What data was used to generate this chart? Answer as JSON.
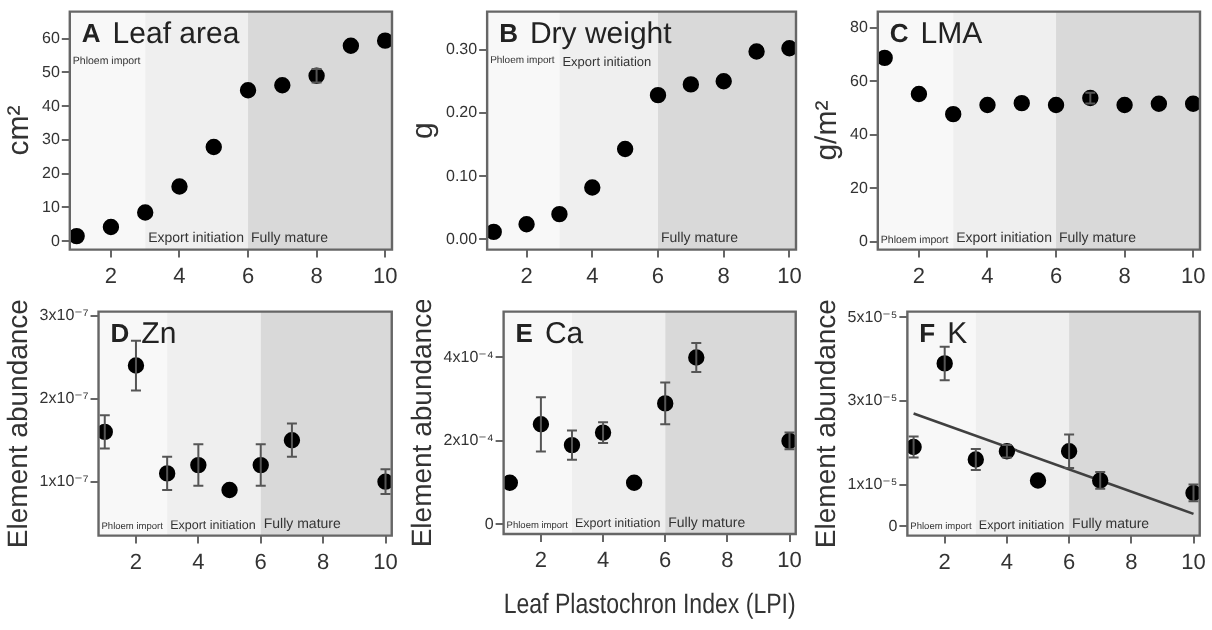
{
  "chart_data": [
    {
      "type": "scatter",
      "title": "Leaf area",
      "annotations": [
        "A"
      ],
      "ylabel": "cm²",
      "x": [
        1,
        2,
        3,
        4,
        5,
        6,
        7,
        8,
        9,
        10
      ],
      "values": [
        1.5,
        4.2,
        8.5,
        16.2,
        27.9,
        44.7,
        46.2,
        49,
        57.9,
        59.4
      ],
      "errors": [
        null,
        null,
        null,
        null,
        null,
        null,
        null,
        2,
        null,
        null
      ],
      "color": "#000000",
      "marker": "circle",
      "xlim": [
        0.8,
        10.2
      ],
      "xticks": [
        2,
        4,
        6,
        8,
        10
      ],
      "ylim": [
        -2.5,
        68
      ],
      "yticks": [
        0,
        10,
        20,
        30,
        40,
        50,
        60
      ],
      "grid": false,
      "legend": false,
      "bands": [
        {
          "axis": "x",
          "from": 0.8,
          "to": 3,
          "label": "Phloem import",
          "color": "#f8f8f8"
        },
        {
          "axis": "x",
          "from": 3,
          "to": 6,
          "label": "Export initiation",
          "color": "#efefef"
        },
        {
          "axis": "x",
          "from": 6,
          "to": 10.2,
          "label": "Fully mature",
          "color": "#d9d9d9"
        }
      ]
    },
    {
      "type": "scatter",
      "title": "Dry weight",
      "annotations": [
        "B"
      ],
      "ylabel": "g",
      "x": [
        1,
        2,
        3,
        4,
        5,
        6,
        7,
        8,
        9,
        10
      ],
      "values": [
        0.012,
        0.024,
        0.04,
        0.082,
        0.143,
        0.228,
        0.245,
        0.25,
        0.297,
        0.302
      ],
      "color": "#000000",
      "marker": "circle",
      "xlim": [
        0.8,
        10.2
      ],
      "xticks": [
        2,
        4,
        6,
        8,
        10
      ],
      "ylim": [
        -0.016,
        0.36
      ],
      "yticks": [
        {
          "value": 0,
          "label": "0.00"
        },
        {
          "value": 0.1,
          "label": "0.10"
        },
        {
          "value": 0.2,
          "label": "0.20"
        },
        {
          "value": 0.3,
          "label": "0.30"
        }
      ],
      "grid": false,
      "legend": false,
      "bands": [
        {
          "axis": "x",
          "from": 0.8,
          "to": 3,
          "label": "Phloem import",
          "color": "#f8f8f8"
        },
        {
          "axis": "x",
          "from": 3,
          "to": 6,
          "label": "Export initiation",
          "color": "#efefef"
        },
        {
          "axis": "x",
          "from": 6,
          "to": 10.2,
          "label": "Fully mature",
          "color": "#d9d9d9"
        }
      ]
    },
    {
      "type": "scatter",
      "title": "LMA",
      "annotations": [
        "C"
      ],
      "ylabel": "g/m²",
      "x": [
        1,
        2,
        3,
        4,
        5,
        6,
        7,
        8,
        9,
        10
      ],
      "values": [
        68.7,
        55.2,
        47.7,
        51.1,
        51.8,
        51.1,
        53.7,
        51.1,
        51.6,
        51.6
      ],
      "errors": [
        null,
        null,
        null,
        null,
        null,
        null,
        2,
        null,
        null,
        null
      ],
      "color": "#000000",
      "marker": "circle",
      "xlim": [
        0.8,
        10.2
      ],
      "xticks": [
        2,
        4,
        6,
        8,
        10
      ],
      "ylim": [
        -2.9,
        86
      ],
      "yticks": [
        0,
        20,
        40,
        60,
        80
      ],
      "grid": false,
      "legend": false,
      "bands": [
        {
          "axis": "x",
          "from": 0.8,
          "to": 3,
          "label": "Phloem import",
          "color": "#f8f8f8"
        },
        {
          "axis": "x",
          "from": 3,
          "to": 6,
          "label": "Export initiation",
          "color": "#efefef"
        },
        {
          "axis": "x",
          "from": 6,
          "to": 10.2,
          "label": "Fully mature",
          "color": "#d9d9d9"
        }
      ]
    },
    {
      "type": "scatter",
      "title": "Zn",
      "annotations": [
        "D"
      ],
      "ylabel": "Element abundance",
      "x": [
        1,
        2,
        3,
        4,
        5,
        6,
        7,
        10
      ],
      "values": [
        1.6e-07,
        2.4e-07,
        1.1e-07,
        1.2e-07,
        9e-08,
        1.2e-07,
        1.5e-07,
        1e-07
      ],
      "errors": [
        2e-08,
        3e-08,
        2e-08,
        2.5e-08,
        null,
        2.5e-08,
        2e-08,
        1.5e-08
      ],
      "color": "#000000",
      "marker": "circle",
      "xlim": [
        0.8,
        10.2
      ],
      "xticks": [
        2,
        4,
        6,
        8,
        10
      ],
      "ylim": [
        3.5e-08,
        3.05e-07
      ],
      "yticks": [
        {
          "value": 1e-07,
          "label": "1x10⁻⁷"
        },
        {
          "value": 2e-07,
          "label": "2x10⁻⁷"
        },
        {
          "value": 3e-07,
          "label": "3x10⁻⁷"
        }
      ],
      "grid": false,
      "legend": false,
      "bands": [
        {
          "axis": "x",
          "from": 0.8,
          "to": 3,
          "label": "Phloem import",
          "color": "#f8f8f8"
        },
        {
          "axis": "x",
          "from": 3,
          "to": 6,
          "label": "Export initiation",
          "color": "#efefef"
        },
        {
          "axis": "x",
          "from": 6,
          "to": 10.2,
          "label": "Fully mature",
          "color": "#d9d9d9"
        }
      ]
    },
    {
      "type": "scatter",
      "title": "Ca",
      "annotations": [
        "E"
      ],
      "ylabel": "Element abundance",
      "xlabel": "Leaf Plastochron Index (LPI)",
      "x": [
        1,
        2,
        3,
        4,
        5,
        6,
        7,
        10
      ],
      "values": [
        0.0001,
        0.00024,
        0.00019,
        0.00022,
        0.0001,
        0.00029,
        0.0004,
        0.0002
      ],
      "errors": [
        null,
        6.5e-05,
        3.5e-05,
        2.5e-05,
        null,
        5e-05,
        3.5e-05,
        2e-05
      ],
      "color": "#000000",
      "marker": "circle",
      "xlim": [
        0.8,
        10.2
      ],
      "xticks": [
        2,
        4,
        6,
        8,
        10
      ],
      "ylim": [
        -2.3e-05,
        0.00051
      ],
      "yticks": [
        0,
        {
          "value": 0.0002,
          "label": "2x10⁻⁴"
        },
        {
          "value": 0.0004,
          "label": "4x10⁻⁴"
        }
      ],
      "grid": false,
      "legend": false,
      "bands": [
        {
          "axis": "x",
          "from": 0.8,
          "to": 3,
          "label": "Phloem import",
          "color": "#f8f8f8"
        },
        {
          "axis": "x",
          "from": 3,
          "to": 6,
          "label": "Export initiation",
          "color": "#efefef"
        },
        {
          "axis": "x",
          "from": 6,
          "to": 10.2,
          "label": "Fully mature",
          "color": "#d9d9d9"
        }
      ]
    },
    {
      "type": "scatter",
      "title": "K",
      "annotations": [
        "F"
      ],
      "ylabel": "Element abundance",
      "series": [
        {
          "type": "scatter",
          "x": [
            1,
            2,
            3,
            4,
            5,
            6,
            7,
            10
          ],
          "values": [
            1.9e-05,
            3.9e-05,
            1.6e-05,
            1.8e-05,
            1.1e-05,
            1.8e-05,
            1.1e-05,
            8e-06
          ],
          "errors": [
            2.5e-06,
            4e-06,
            2.5e-06,
            1.5e-06,
            null,
            4e-06,
            2e-06,
            2e-06
          ],
          "color": "#000000",
          "marker": "circle"
        },
        {
          "type": "line",
          "x": [
            1,
            10
          ],
          "values": [
            2.7e-05,
            3e-06
          ],
          "color": "#404040"
        }
      ],
      "xlim": [
        0.8,
        10.2
      ],
      "xticks": [
        2,
        4,
        6,
        8,
        10
      ],
      "ylim": [
        -2.2e-06,
        5.14e-05
      ],
      "yticks": [
        0,
        {
          "value": 1e-05,
          "label": "1x10⁻⁵"
        },
        {
          "value": 3e-05,
          "label": "3x10⁻⁵"
        },
        {
          "value": 5e-05,
          "label": "5x10⁻⁵"
        }
      ],
      "grid": false,
      "legend": false,
      "bands": [
        {
          "axis": "x",
          "from": 0.8,
          "to": 3,
          "label": "Phloem import",
          "color": "#f8f8f8"
        },
        {
          "axis": "x",
          "from": 3,
          "to": 6,
          "label": "Export initiation",
          "color": "#efefef"
        },
        {
          "axis": "x",
          "from": 6,
          "to": 10.2,
          "label": "Fully mature",
          "color": "#d9d9d9"
        }
      ]
    }
  ]
}
